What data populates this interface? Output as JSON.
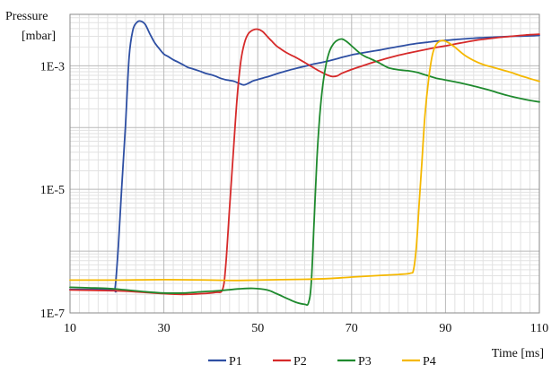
{
  "chart_data": {
    "type": "line",
    "xlabel": "Time [ms]",
    "ylabel_line1": "Pressure",
    "ylabel_line2": "[mbar]",
    "xlim": [
      10,
      110
    ],
    "ylim": [
      1e-07,
      0.0068
    ],
    "yscale": "log",
    "grid": true,
    "legend_position": "bottom-center",
    "x_ticks": [
      10,
      30,
      50,
      70,
      90,
      110
    ],
    "y_ticks": [
      {
        "value": 0.001,
        "label": "1E-3"
      },
      {
        "value": 1e-05,
        "label": "1E-5"
      },
      {
        "value": 1e-07,
        "label": "1E-7"
      }
    ],
    "series": [
      {
        "name": "P1",
        "color": "#2E4FA3",
        "points": [
          [
            10,
            2.4e-07
          ],
          [
            19,
            2.4e-07
          ],
          [
            19.6,
            2.5e-07
          ],
          [
            20.3,
            1.2e-06
          ],
          [
            21,
            1e-05
          ],
          [
            21.8,
            0.0001
          ],
          [
            22.6,
            0.0014
          ],
          [
            23.4,
            0.0038
          ],
          [
            24.2,
            0.005
          ],
          [
            25,
            0.0053
          ],
          [
            26,
            0.0047
          ],
          [
            27,
            0.0033
          ],
          [
            28,
            0.0024
          ],
          [
            29,
            0.0019
          ],
          [
            30,
            0.00155
          ],
          [
            31,
            0.0014
          ],
          [
            32,
            0.00125
          ],
          [
            33,
            0.00115
          ],
          [
            34,
            0.00105
          ],
          [
            35,
            0.00095
          ],
          [
            36,
            0.0009
          ],
          [
            37,
            0.00085
          ],
          [
            38,
            0.0008
          ],
          [
            39,
            0.00075
          ],
          [
            40,
            0.00072
          ],
          [
            41,
            0.00068
          ],
          [
            42,
            0.00063
          ],
          [
            43,
            0.0006
          ],
          [
            44,
            0.00058
          ],
          [
            45,
            0.00056
          ],
          [
            46,
            0.00052
          ],
          [
            47,
            0.00049
          ],
          [
            48,
            0.00052
          ],
          [
            49,
            0.00057
          ],
          [
            50,
            0.0006
          ],
          [
            52,
            0.00066
          ],
          [
            54,
            0.00074
          ],
          [
            56,
            0.00082
          ],
          [
            58,
            0.0009
          ],
          [
            60,
            0.00098
          ],
          [
            62,
            0.00107
          ],
          [
            64,
            0.00115
          ],
          [
            66,
            0.00125
          ],
          [
            68,
            0.00137
          ],
          [
            70,
            0.0015
          ],
          [
            72,
            0.0016
          ],
          [
            74,
            0.0017
          ],
          [
            76,
            0.0018
          ],
          [
            78,
            0.00192
          ],
          [
            80,
            0.00205
          ],
          [
            82,
            0.00218
          ],
          [
            84,
            0.0023
          ],
          [
            86,
            0.0024
          ],
          [
            88,
            0.0025
          ],
          [
            90,
            0.00258
          ],
          [
            92,
            0.00265
          ],
          [
            94,
            0.00272
          ],
          [
            96,
            0.0028
          ],
          [
            98,
            0.00285
          ],
          [
            100,
            0.0029
          ],
          [
            102,
            0.00295
          ],
          [
            104,
            0.003
          ],
          [
            106,
            0.00302
          ],
          [
            108,
            0.00305
          ],
          [
            110,
            0.0031
          ]
        ]
      },
      {
        "name": "P2",
        "color": "#D62A2A",
        "points": [
          [
            10,
            2.35e-07
          ],
          [
            14,
            2.33e-07
          ],
          [
            18,
            2.3e-07
          ],
          [
            22,
            2.25e-07
          ],
          [
            26,
            2.15e-07
          ],
          [
            30,
            2.05e-07
          ],
          [
            34,
            2e-07
          ],
          [
            38,
            2.05e-07
          ],
          [
            41,
            2.15e-07
          ],
          [
            42.5,
            2.4e-07
          ],
          [
            43.2,
            6e-07
          ],
          [
            44,
            5e-06
          ],
          [
            44.8,
            4e-05
          ],
          [
            45.6,
            0.0003
          ],
          [
            46.4,
            0.0012
          ],
          [
            47.2,
            0.0024
          ],
          [
            48,
            0.0033
          ],
          [
            49,
            0.0038
          ],
          [
            50,
            0.0039
          ],
          [
            51,
            0.0036
          ],
          [
            52,
            0.003
          ],
          [
            53,
            0.0025
          ],
          [
            54,
            0.0021
          ],
          [
            55,
            0.00185
          ],
          [
            56,
            0.00165
          ],
          [
            57,
            0.0015
          ],
          [
            58,
            0.00138
          ],
          [
            59,
            0.00125
          ],
          [
            60,
            0.00113
          ],
          [
            61,
            0.00102
          ],
          [
            62,
            0.00092
          ],
          [
            63,
            0.00083
          ],
          [
            64,
            0.00076
          ],
          [
            65,
            0.0007
          ],
          [
            66,
            0.00067
          ],
          [
            67,
            0.00069
          ],
          [
            68,
            0.00076
          ],
          [
            70,
            0.00087
          ],
          [
            72,
            0.00098
          ],
          [
            74,
            0.0011
          ],
          [
            76,
            0.00122
          ],
          [
            78,
            0.00135
          ],
          [
            80,
            0.00148
          ],
          [
            82,
            0.0016
          ],
          [
            84,
            0.00172
          ],
          [
            86,
            0.00185
          ],
          [
            88,
            0.00198
          ],
          [
            90,
            0.0021
          ],
          [
            92,
            0.00225
          ],
          [
            94,
            0.0024
          ],
          [
            96,
            0.00255
          ],
          [
            98,
            0.00268
          ],
          [
            100,
            0.0028
          ],
          [
            102,
            0.0029
          ],
          [
            104,
            0.003
          ],
          [
            106,
            0.0031
          ],
          [
            108,
            0.00318
          ],
          [
            110,
            0.00325
          ]
        ]
      },
      {
        "name": "P3",
        "color": "#1F8A2E",
        "points": [
          [
            10,
            2.6e-07
          ],
          [
            14,
            2.55e-07
          ],
          [
            18,
            2.5e-07
          ],
          [
            22,
            2.35e-07
          ],
          [
            26,
            2.2e-07
          ],
          [
            30,
            2.1e-07
          ],
          [
            34,
            2.1e-07
          ],
          [
            38,
            2.2e-07
          ],
          [
            42,
            2.3e-07
          ],
          [
            46,
            2.45e-07
          ],
          [
            49,
            2.5e-07
          ],
          [
            52,
            2.35e-07
          ],
          [
            54,
            2.05e-07
          ],
          [
            56,
            1.75e-07
          ],
          [
            58,
            1.5e-07
          ],
          [
            60,
            1.38e-07
          ],
          [
            60.8,
            1.45e-07
          ],
          [
            61.4,
            3e-07
          ],
          [
            62,
            3e-06
          ],
          [
            62.6,
            3e-05
          ],
          [
            63.2,
            0.00015
          ],
          [
            63.8,
            0.00045
          ],
          [
            64.6,
            0.0011
          ],
          [
            65.4,
            0.0018
          ],
          [
            66.2,
            0.0023
          ],
          [
            67,
            0.0026
          ],
          [
            68,
            0.0027
          ],
          [
            69,
            0.00245
          ],
          [
            70,
            0.0021
          ],
          [
            71,
            0.0018
          ],
          [
            72,
            0.00155
          ],
          [
            73,
            0.0014
          ],
          [
            74,
            0.0013
          ],
          [
            75,
            0.0012
          ],
          [
            76,
            0.0011
          ],
          [
            77,
            0.001
          ],
          [
            78,
            0.00092
          ],
          [
            80,
            0.00086
          ],
          [
            82,
            0.00083
          ],
          [
            84,
            0.00078
          ],
          [
            86,
            0.0007
          ],
          [
            88,
            0.00063
          ],
          [
            90,
            0.00059
          ],
          [
            92,
            0.00055
          ],
          [
            94,
            0.00051
          ],
          [
            96,
            0.00047
          ],
          [
            98,
            0.00043
          ],
          [
            100,
            0.00039
          ],
          [
            102,
            0.00035
          ],
          [
            104,
            0.00032
          ],
          [
            106,
            0.000295
          ],
          [
            108,
            0.000275
          ],
          [
            110,
            0.00026
          ]
        ]
      },
      {
        "name": "P4",
        "color": "#F5B800",
        "points": [
          [
            10,
            3.4e-07
          ],
          [
            20,
            3.4e-07
          ],
          [
            30,
            3.45e-07
          ],
          [
            40,
            3.4e-07
          ],
          [
            45,
            3.35e-07
          ],
          [
            50,
            3.4e-07
          ],
          [
            55,
            3.45e-07
          ],
          [
            60,
            3.5e-07
          ],
          [
            65,
            3.6e-07
          ],
          [
            70,
            3.8e-07
          ],
          [
            75,
            4e-07
          ],
          [
            80,
            4.2e-07
          ],
          [
            82.5,
            4.4e-07
          ],
          [
            83.2,
            5e-07
          ],
          [
            83.8,
            1.2e-06
          ],
          [
            84.4,
            6e-06
          ],
          [
            85,
            3e-05
          ],
          [
            85.6,
            0.00015
          ],
          [
            86.4,
            0.0006
          ],
          [
            87.2,
            0.0015
          ],
          [
            88,
            0.0022
          ],
          [
            88.8,
            0.0025
          ],
          [
            89.6,
            0.00255
          ],
          [
            90.5,
            0.0024
          ],
          [
            92,
            0.002
          ],
          [
            94,
            0.0015
          ],
          [
            96,
            0.00122
          ],
          [
            98,
            0.00105
          ],
          [
            100,
            0.00095
          ],
          [
            102,
            0.00086
          ],
          [
            104,
            0.00078
          ],
          [
            106,
            0.00069
          ],
          [
            108,
            0.00062
          ],
          [
            110,
            0.00056
          ]
        ]
      }
    ]
  }
}
